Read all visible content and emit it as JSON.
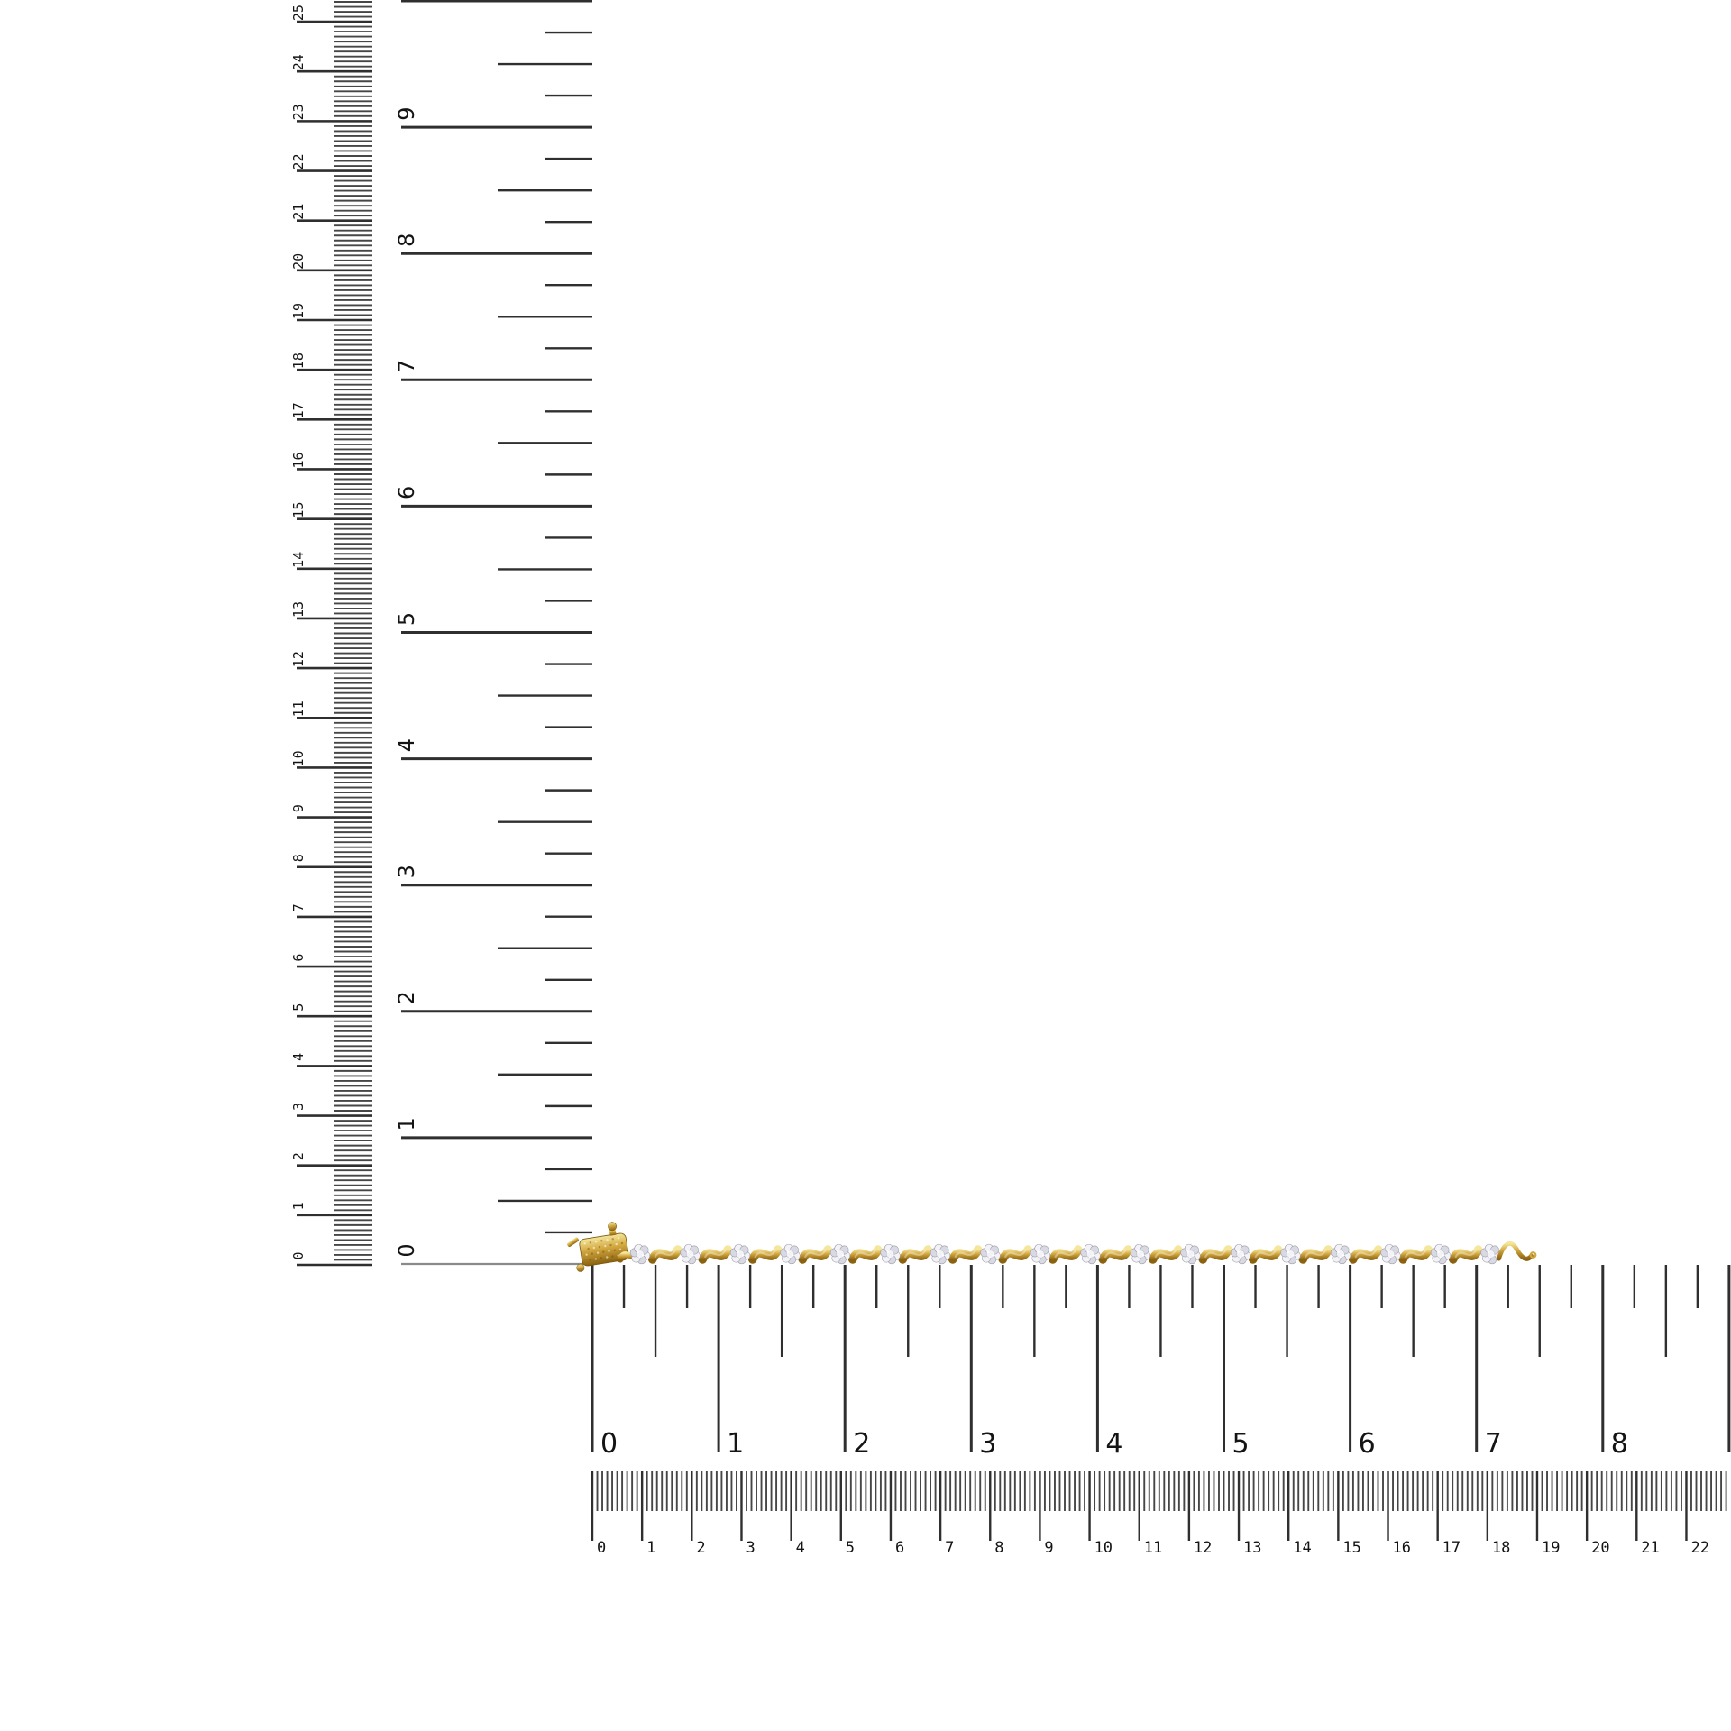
{
  "image": {
    "background": "#ffffff"
  },
  "rulers": {
    "line_color": "#2f2f2f",
    "minor_line_color": "#464646",
    "zero_line_color": "#8a8a8a",
    "label_color": "#141414",
    "vertical_cm": {
      "labels": [
        "0",
        "1",
        "2",
        "3",
        "4",
        "5",
        "6",
        "7",
        "8",
        "9",
        "10",
        "11",
        "12",
        "13",
        "14",
        "15",
        "16",
        "17",
        "18",
        "19",
        "20",
        "21",
        "22",
        "23",
        "24",
        "25"
      ]
    },
    "vertical_inch": {
      "labels": [
        "0",
        "1",
        "2",
        "3",
        "4",
        "5",
        "6",
        "7",
        "8",
        "9"
      ]
    },
    "horizontal_inch": {
      "labels": [
        "0",
        "1",
        "2",
        "3",
        "4",
        "5",
        "6",
        "7",
        "8"
      ]
    },
    "horizontal_cm": {
      "labels": [
        "0",
        "1",
        "2",
        "3",
        "4",
        "5",
        "6",
        "7",
        "8",
        "9",
        "10",
        "11",
        "12",
        "13",
        "14",
        "15",
        "16",
        "17",
        "18",
        "19",
        "20",
        "21",
        "22"
      ]
    }
  },
  "bracelet": {
    "cluster_count": 18,
    "colors": {
      "gold": "#d2a73e",
      "gold_light": "#f5e69c",
      "gold_deep": "#8a6210",
      "gold_edge": "#7a5a10",
      "diamond_light": "#f2f2f7",
      "diamond_mid": "#d9d9e3",
      "diamond_dark": "#9c9ca8",
      "sparkle": "#ffffff"
    }
  }
}
